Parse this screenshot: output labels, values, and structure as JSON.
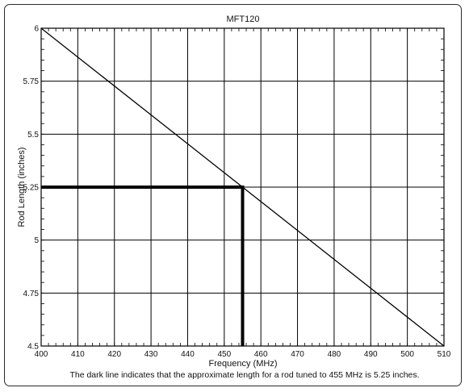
{
  "chart_data": {
    "type": "line",
    "title": "MFT120",
    "xlabel": "Frequency (MHz)",
    "ylabel": "Rod Length (inches)",
    "xlim": [
      400,
      510
    ],
    "ylim": [
      4.5,
      6
    ],
    "x_ticks": [
      400,
      410,
      420,
      430,
      440,
      450,
      460,
      470,
      480,
      490,
      500,
      510
    ],
    "x_tick_labels": [
      "400",
      "410",
      "420",
      "430",
      "440",
      "450",
      "460",
      "470",
      "480",
      "490",
      "500",
      "510"
    ],
    "y_ticks": [
      4.5,
      4.75,
      5,
      5.25,
      5.5,
      5.75,
      6
    ],
    "y_tick_labels": [
      "4.5",
      "4.75",
      "5",
      "5.25",
      "5.5",
      "5.75",
      "6"
    ],
    "grid": true,
    "series": [
      {
        "x": [
          400,
          510
        ],
        "y": [
          6,
          4.5
        ]
      }
    ],
    "highlight": {
      "x": 455,
      "y": 5.25
    },
    "caption": "The dark line indicates that the approximate length for a rod tuned to 455 MHz is 5.25 inches.",
    "colors": {
      "line": "#000000",
      "grid": "#000000",
      "highlight": "#000000"
    }
  }
}
